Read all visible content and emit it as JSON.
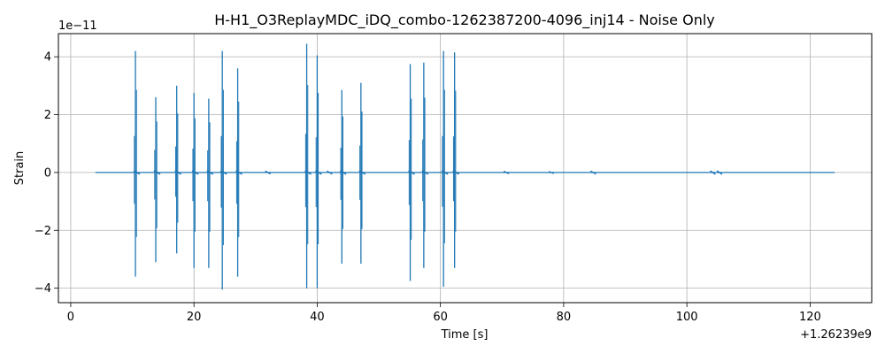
{
  "chart_data": {
    "type": "line",
    "title": "H-H1_O3ReplayMDC_iDQ_combo-1262387200-4096_inj14 - Noise Only",
    "xlabel": "Time [s]",
    "ylabel": "Strain",
    "x_offset_label": "+1.26239e9",
    "y_scale_label": "1e−11",
    "xlim": [
      -2,
      130
    ],
    "ylim": [
      -4.5,
      4.8
    ],
    "x_ticks": [
      0,
      20,
      40,
      60,
      80,
      100,
      120
    ],
    "x_tick_labels": [
      "0",
      "20",
      "40",
      "60",
      "80",
      "100",
      "120"
    ],
    "y_ticks": [
      -4,
      -2,
      0,
      2,
      4
    ],
    "y_tick_labels": [
      "−4",
      "−2",
      "0",
      "2",
      "4"
    ],
    "grid": true,
    "line_color": "#1f77b4",
    "series": [
      {
        "x_range": [
          4,
          124
        ],
        "baseline": 0,
        "bursts": [
          {
            "t": 10.5,
            "max": 4.2,
            "min": -3.6
          },
          {
            "t": 13.8,
            "max": 2.6,
            "min": -3.1
          },
          {
            "t": 17.2,
            "max": 3.0,
            "min": -2.8
          },
          {
            "t": 20.0,
            "max": 2.75,
            "min": -3.3
          },
          {
            "t": 22.4,
            "max": 2.55,
            "min": -3.3
          },
          {
            "t": 24.6,
            "max": 4.2,
            "min": -4.05
          },
          {
            "t": 27.1,
            "max": 3.6,
            "min": -3.6
          },
          {
            "t": 38.3,
            "max": 4.45,
            "min": -4.0
          },
          {
            "t": 40.0,
            "max": 4.05,
            "min": -4.0
          },
          {
            "t": 44.0,
            "max": 2.85,
            "min": -3.15
          },
          {
            "t": 47.1,
            "max": 3.1,
            "min": -3.15
          },
          {
            "t": 55.1,
            "max": 3.75,
            "min": -3.75
          },
          {
            "t": 57.3,
            "max": 3.8,
            "min": -3.3
          },
          {
            "t": 60.5,
            "max": 4.2,
            "min": -3.95
          },
          {
            "t": 62.3,
            "max": 4.15,
            "min": -3.3
          }
        ],
        "small_features": [
          {
            "t": 32.0,
            "amp": 0.05
          },
          {
            "t": 42.0,
            "amp": 0.05
          },
          {
            "t": 70.7,
            "amp": 0.04
          },
          {
            "t": 78.0,
            "amp": 0.03
          },
          {
            "t": 84.8,
            "amp": 0.05
          },
          {
            "t": 104.2,
            "amp": 0.06
          },
          {
            "t": 105.3,
            "amp": 0.06
          }
        ]
      }
    ]
  }
}
